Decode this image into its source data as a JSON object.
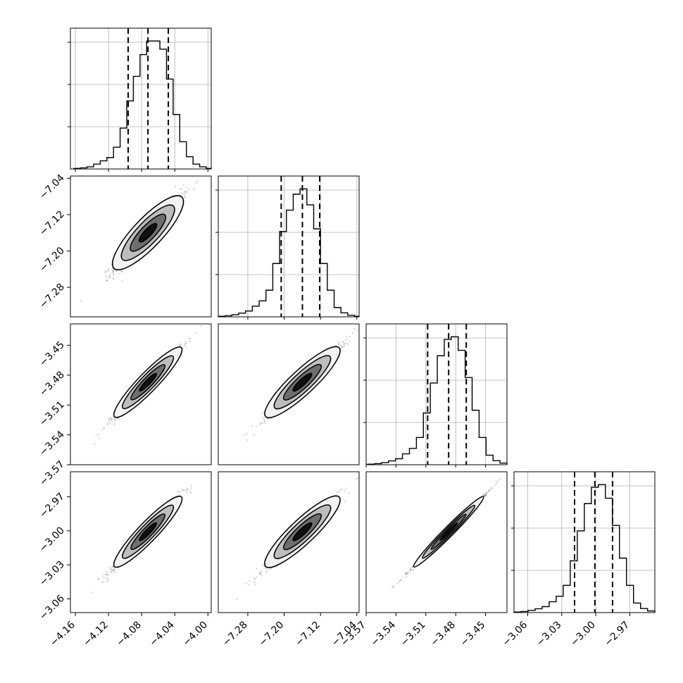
{
  "chart_data": [
    {
      "type": "histogram",
      "panel": "p0",
      "xlim": [
        -4.166,
        -3.996
      ],
      "x_ticks": [
        "−4.16",
        "−4.12",
        "−4.08",
        "−4.04",
        "−4.00"
      ],
      "bin_edges": [
        -4.162,
        -4.154,
        -4.146,
        -4.138,
        -4.13,
        -4.122,
        -4.114,
        -4.106,
        -4.098,
        -4.09,
        -4.082,
        -4.074,
        -4.066,
        -4.058,
        -4.05,
        -4.042,
        -4.034,
        -4.026,
        -4.018,
        -4.01,
        -4.002,
        -3.996
      ],
      "counts": [
        2,
        4,
        8,
        18,
        30,
        42,
        80,
        150,
        250,
        340,
        420,
        470,
        470,
        440,
        330,
        200,
        100,
        45,
        18,
        8,
        2
      ],
      "quantiles": [
        -4.0963,
        -4.0724,
        -4.0478
      ],
      "grid": true
    },
    {
      "type": "histogram",
      "panel": "p1",
      "xlim": [
        -7.345,
        -7.035
      ],
      "x_ticks": [
        "−7.28",
        "−7.20",
        "−7.12",
        "−7.04"
      ],
      "bin_edges": [
        -7.345,
        -7.33,
        -7.315,
        -7.3,
        -7.285,
        -7.27,
        -7.255,
        -7.24,
        -7.225,
        -7.21,
        -7.195,
        -7.18,
        -7.165,
        -7.15,
        -7.135,
        -7.12,
        -7.105,
        -7.09,
        -7.075,
        -7.06,
        -7.045,
        -7.035
      ],
      "counts": [
        2,
        4,
        8,
        14,
        22,
        40,
        60,
        100,
        200,
        320,
        400,
        460,
        480,
        420,
        330,
        200,
        100,
        35,
        15,
        6,
        2
      ],
      "quantiles": [
        -7.2065,
        -7.1598,
        -7.1218
      ],
      "grid": true
    },
    {
      "type": "histogram",
      "panel": "p2",
      "xlim": [
        -3.57,
        -3.4285
      ],
      "x_ticks": [
        "−3.57",
        "−3.54",
        "−3.51",
        "−3.48",
        "−3.45"
      ],
      "bin_edges": [
        -3.5685,
        -3.5615,
        -3.5545,
        -3.5475,
        -3.5405,
        -3.5335,
        -3.5265,
        -3.5195,
        -3.5125,
        -3.5055,
        -3.4985,
        -3.4915,
        -3.4845,
        -3.4775,
        -3.4705,
        -3.4635,
        -3.4565,
        -3.4495,
        -3.4425,
        -3.4355,
        -3.4285
      ],
      "counts": [
        2,
        4,
        8,
        14,
        22,
        40,
        60,
        100,
        190,
        300,
        400,
        460,
        470,
        420,
        320,
        200,
        100,
        35,
        15,
        6
      ],
      "quantiles": [
        -3.5082,
        -3.4871,
        -3.4694
      ],
      "grid": true
    },
    {
      "type": "histogram",
      "panel": "p3",
      "xlim": [
        -3.0721,
        -2.9479
      ],
      "x_ticks": [
        "−3.06",
        "−3.03",
        "−3.00",
        "−2.97"
      ],
      "bin_edges": [
        -3.0721,
        -3.0659,
        -3.0597,
        -3.0535,
        -3.0473,
        -3.0411,
        -3.0349,
        -3.0287,
        -3.0225,
        -3.0163,
        -3.0101,
        -3.0039,
        -2.9977,
        -2.9915,
        -2.9853,
        -2.9791,
        -2.9729,
        -2.9667,
        -2.9605,
        -2.9543,
        -2.9479
      ],
      "counts": [
        2,
        4,
        8,
        14,
        22,
        40,
        60,
        100,
        190,
        300,
        400,
        460,
        470,
        420,
        320,
        200,
        100,
        35,
        15,
        6
      ],
      "quantiles": [
        -3.0187,
        -3.0008,
        -2.9852
      ],
      "grid": true
    },
    {
      "type": "scatter",
      "panel": "p10",
      "x_ticks": [],
      "y_ticks": [
        "−7.04",
        "−7.12",
        "−7.20",
        "−7.28"
      ],
      "xlim": [
        -4.166,
        -3.996
      ],
      "ylim": [
        -7.345,
        -7.035
      ],
      "center": [
        -4.0724,
        -7.1598
      ],
      "spread": [
        0.02,
        0.04
      ],
      "correlation": 0.96,
      "contours": true
    },
    {
      "type": "scatter",
      "panel": "p20",
      "x_ticks": [],
      "y_ticks": [
        "−3.45",
        "−3.48",
        "−3.51",
        "−3.54",
        "−3.57"
      ],
      "xlim": [
        -4.166,
        -3.996
      ],
      "ylim": [
        -3.57,
        -3.4285
      ],
      "center": [
        -4.0724,
        -3.4871
      ],
      "spread": [
        0.02,
        0.0175
      ],
      "correlation": 0.985,
      "contours": true
    },
    {
      "type": "scatter",
      "panel": "p21",
      "x_ticks": [],
      "y_ticks": [],
      "xlim": [
        -7.345,
        -7.035
      ],
      "ylim": [
        -3.57,
        -3.4285
      ],
      "center": [
        -7.1598,
        -3.4871
      ],
      "spread": [
        0.04,
        0.0175
      ],
      "correlation": 0.975,
      "contours": true
    },
    {
      "type": "scatter",
      "panel": "p30",
      "x_ticks": [
        "−4.16",
        "−4.12",
        "−4.08",
        "−4.04",
        "−4.00"
      ],
      "y_ticks": [
        "−2.97",
        "−3.00",
        "−3.03",
        "−3.06"
      ],
      "xlim": [
        -4.166,
        -3.996
      ],
      "ylim": [
        -3.0721,
        -2.9479
      ],
      "center": [
        -4.0724,
        -3.0008
      ],
      "spread": [
        0.02,
        0.0155
      ],
      "correlation": 0.985,
      "contours": true
    },
    {
      "type": "scatter",
      "panel": "p31",
      "x_ticks": [
        "−7.28",
        "−7.20",
        "−7.12",
        "−7.04"
      ],
      "y_ticks": [],
      "xlim": [
        -7.345,
        -7.035
      ],
      "ylim": [
        -3.0721,
        -2.9479
      ],
      "center": [
        -7.1598,
        -3.0008
      ],
      "spread": [
        0.04,
        0.0155
      ],
      "correlation": 0.975,
      "contours": true
    },
    {
      "type": "scatter",
      "panel": "p32",
      "x_ticks": [
        "−3.57",
        "−3.54",
        "−3.51",
        "−3.48",
        "−3.45"
      ],
      "y_ticks": [],
      "xlim": [
        -3.57,
        -3.4285
      ],
      "ylim": [
        -3.0721,
        -2.9479
      ],
      "center": [
        -3.4871,
        -3.0008
      ],
      "spread": [
        0.0175,
        0.0155
      ],
      "correlation": 0.998,
      "contours": true
    }
  ]
}
